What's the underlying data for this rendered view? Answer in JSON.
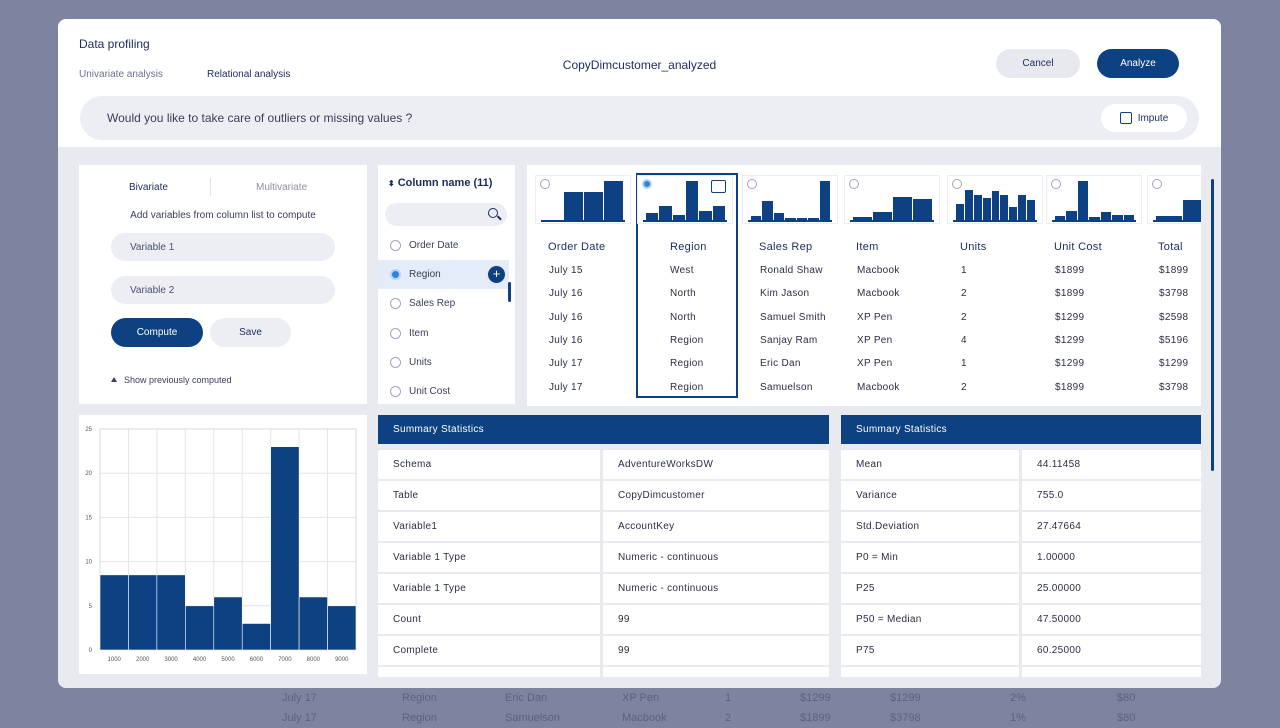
{
  "background_rows": [
    [
      "July 17",
      "Region",
      "Eric Dan",
      "XP Pen",
      "1",
      "$1299",
      "$1299",
      "2%",
      "$80"
    ],
    [
      "July 17",
      "Region",
      "Samuelson",
      "Macbook",
      "2",
      "$1899",
      "$3798",
      "1%",
      "$80"
    ]
  ],
  "header": {
    "title": "Data profiling",
    "tabs": [
      "Univariate analysis",
      "Relational analysis"
    ],
    "dataset_name": "CopyDimcustomer_analyzed",
    "cancel_label": "Cancel",
    "analyze_label": "Analyze"
  },
  "prompt": {
    "question": "Would you like to take care of outliers or missing values ?",
    "impute_label": "Impute"
  },
  "bivariate": {
    "tabs": [
      "Bivariate",
      "Multivariate"
    ],
    "description": "Add variables from column list to compute",
    "variable1_placeholder": "Variable 1",
    "variable2_placeholder": "Variable 2",
    "compute_label": "Compute",
    "save_label": "Save",
    "show_previous_label": "Show previously computed"
  },
  "column_list": {
    "header": "Column name (11)",
    "items": [
      "Order Date",
      "Region",
      "Sales Rep",
      "Item",
      "Units",
      "Unit Cost"
    ],
    "selected": "Region"
  },
  "data_table": {
    "columns": [
      "Order Date",
      "Region",
      "Sales Rep",
      "Item",
      "Units",
      "Unit Cost",
      "Total"
    ],
    "selected_column": "Region",
    "rows": [
      [
        "July 15",
        "West",
        "Ronald Shaw",
        "Macbook",
        "1",
        "$1899",
        "$1899"
      ],
      [
        "July 16",
        "North",
        "Kim Jason",
        "Macbook",
        "2",
        "$1899",
        "$3798"
      ],
      [
        "July 16",
        "North",
        "Samuel Smith",
        "XP Pen",
        "2",
        "$1299",
        "$2598"
      ],
      [
        "July 16",
        "Region",
        "Sanjay Ram",
        "XP Pen",
        "4",
        "$1299",
        "$5196"
      ],
      [
        "July 17",
        "Region",
        "Eric Dan",
        "XP Pen",
        "1",
        "$1299",
        "$1299"
      ],
      [
        "July 17",
        "Region",
        "Samuelson",
        "Macbook",
        "2",
        "$1899",
        "$3798"
      ]
    ],
    "mini_histograms": [
      [
        0,
        0.68,
        0.68,
        0.95
      ],
      [
        0.18,
        0.35,
        0.14,
        0.95,
        0.25,
        0.35
      ],
      [
        0.12,
        0.48,
        0.2,
        0.06,
        0.06,
        0.06,
        0.95
      ],
      [
        0.1,
        0.22,
        0.58,
        0.52
      ],
      [
        0.4,
        0.75,
        0.62,
        0.55,
        0.72,
        0.62,
        0.34,
        0.62,
        0.5
      ],
      [
        0.12,
        0.25,
        0.95,
        0.1,
        0.22,
        0.15,
        0.15
      ],
      [
        0.12,
        0.5,
        0.95
      ]
    ]
  },
  "summary_left": {
    "title": "Summary Statistics",
    "rows": [
      [
        "Schema",
        "AdventureWorksDW"
      ],
      [
        "Table",
        "CopyDimcustomer"
      ],
      [
        "Variable1",
        "AccountKey"
      ],
      [
        "Variable 1 Type",
        "Numeric - continuous"
      ],
      [
        "Variable 1 Type",
        "Numeric - continuous"
      ],
      [
        "Count",
        "99"
      ],
      [
        "Complete",
        "99"
      ]
    ]
  },
  "summary_right": {
    "title": "Summary Statistics",
    "rows": [
      [
        "Mean",
        "44.11458"
      ],
      [
        "Variance",
        "755.0"
      ],
      [
        "Std.Deviation",
        "27.47664"
      ],
      [
        "P0 = Min",
        "1.00000"
      ],
      [
        "P25",
        "25.00000"
      ],
      [
        "P50 = Median",
        "47.50000"
      ],
      [
        "P75",
        "60.25000"
      ]
    ]
  },
  "chart_data": {
    "type": "bar",
    "title": "",
    "xlabel": "",
    "ylabel": "",
    "x_ticks": [
      "1000",
      "2000",
      "3000",
      "4000",
      "5000",
      "6000",
      "7000",
      "8000",
      "9000"
    ],
    "y_ticks": [
      "0",
      "5",
      "10",
      "15",
      "20",
      "25"
    ],
    "bin_edges": [
      0,
      1000,
      2000,
      3000,
      4000,
      5000,
      6000,
      7000,
      8000,
      9000
    ],
    "values": [
      8.5,
      8.5,
      8.5,
      5,
      6,
      3,
      23,
      6,
      5
    ],
    "ylim": [
      0,
      25
    ],
    "bar_color": "#0d4182",
    "grid": true
  },
  "colors": {
    "primary": "#0d4182",
    "selected_radio": "#2f86d9",
    "modal_bg": "#e8eaf0",
    "backdrop": "#7e849f"
  }
}
